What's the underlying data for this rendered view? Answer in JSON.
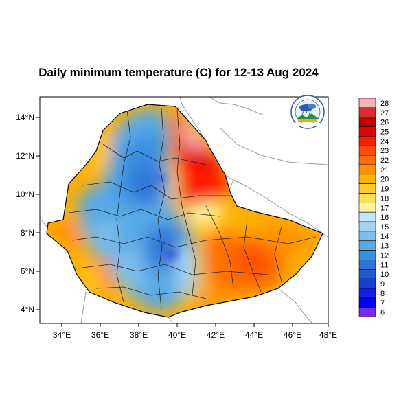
{
  "title": "Daily minimum temperature (C) for 12-13 Aug 2024",
  "map": {
    "lon_range": [
      33,
      48
    ],
    "lat_range": [
      3.2,
      15
    ],
    "x_ticks": [
      "34°E",
      "36°E",
      "38°E",
      "40°E",
      "42°E",
      "44°E",
      "46°E",
      "48°E"
    ],
    "y_ticks": [
      "14°N",
      "12°N",
      "10°N",
      "8°N",
      "6°N",
      "4°N"
    ]
  },
  "colorbar": {
    "labels": [
      "28",
      "27",
      "26",
      "25",
      "24",
      "23",
      "22",
      "21",
      "20",
      "19",
      "18",
      "17",
      "16",
      "15",
      "14",
      "13",
      "12",
      "11",
      "10",
      "9",
      "8",
      "7",
      "6"
    ],
    "colors": [
      "#f7b2b7",
      "#d62f2f",
      "#c00000",
      "#e60000",
      "#ff1a00",
      "#ff4d00",
      "#ff7000",
      "#ff9000",
      "#ffb000",
      "#ffc830",
      "#ffe050",
      "#fff5a0",
      "#c6e6f7",
      "#a2d3f2",
      "#7cbfec",
      "#58a9e6",
      "#3b8ee0",
      "#2d73d8",
      "#1f58d0",
      "#1a40cf",
      "#1020e6",
      "#0000ff",
      "#7a2be0"
    ]
  },
  "logo": {
    "icon": "ethiopian-meteorology-institute-logo"
  }
}
